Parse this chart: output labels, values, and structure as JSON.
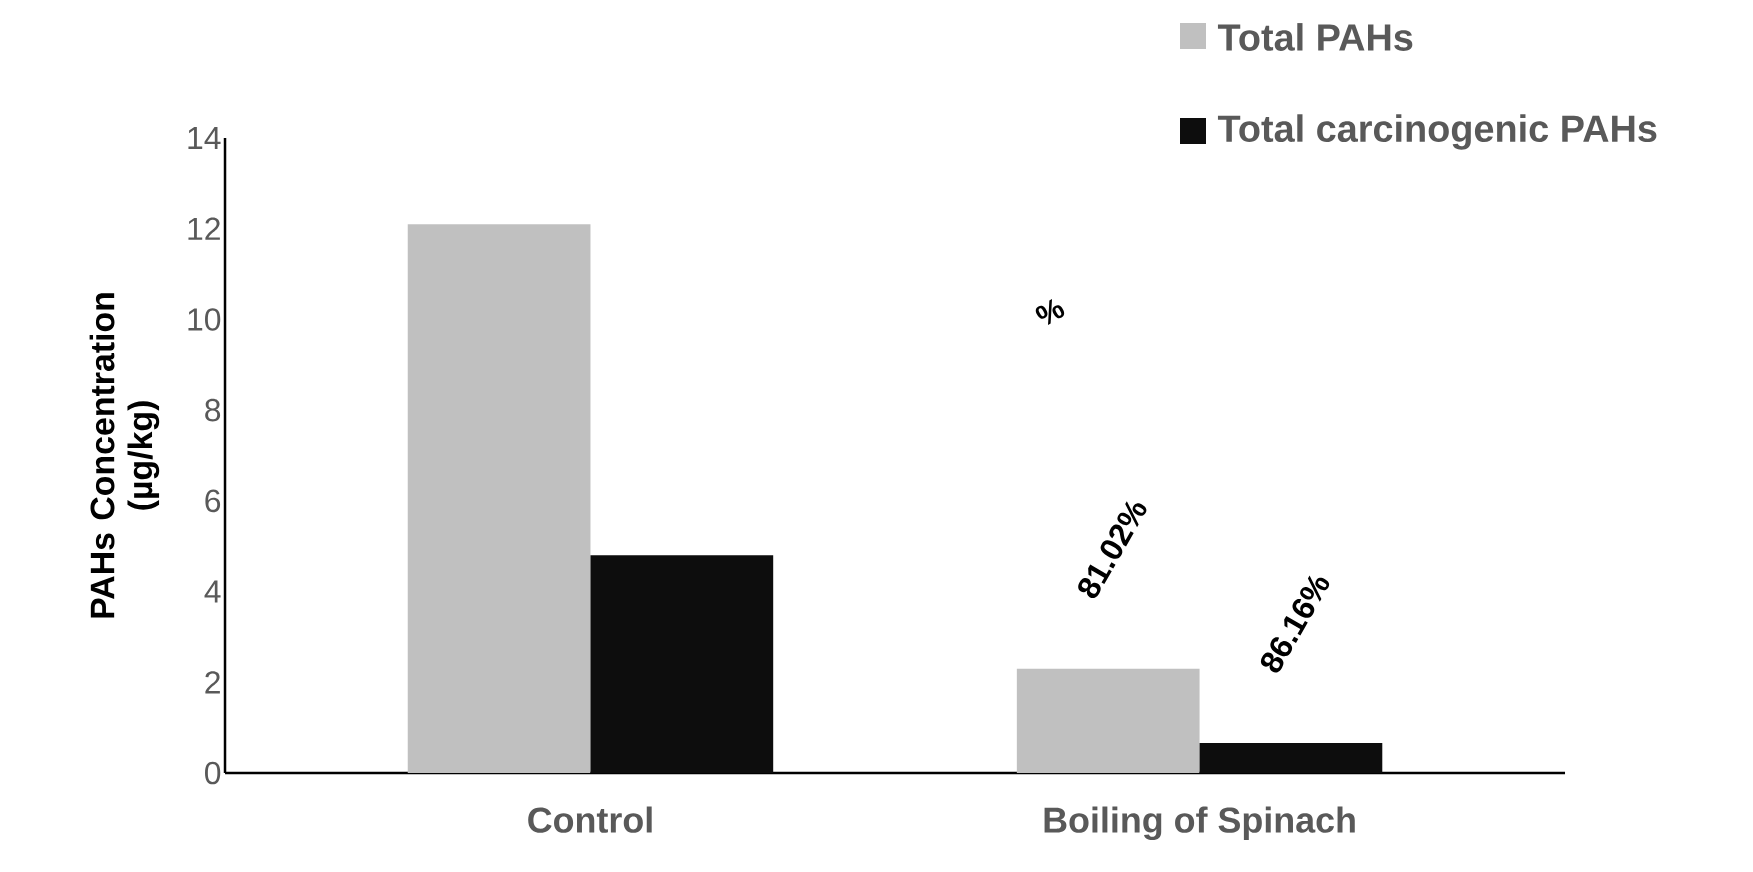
{
  "chart_data": {
    "type": "bar",
    "ylabel": "PAHs Concentration\n(µg/kg)",
    "categories": [
      "Control",
      "Boiling of Spinach"
    ],
    "series": [
      {
        "name": "Total PAHs",
        "color": "#c0c0c0",
        "values": [
          12.1,
          2.3
        ]
      },
      {
        "name": "Total carcinogenic PAHs",
        "color": "#0d0d0d",
        "values": [
          4.8,
          0.66
        ]
      }
    ],
    "ylim": [
      0,
      14
    ],
    "yticks": [
      0,
      2,
      4,
      6,
      8,
      10,
      12,
      14
    ],
    "legend": "top right",
    "annotations": [
      "81.02%",
      "86.16%",
      "%"
    ]
  }
}
